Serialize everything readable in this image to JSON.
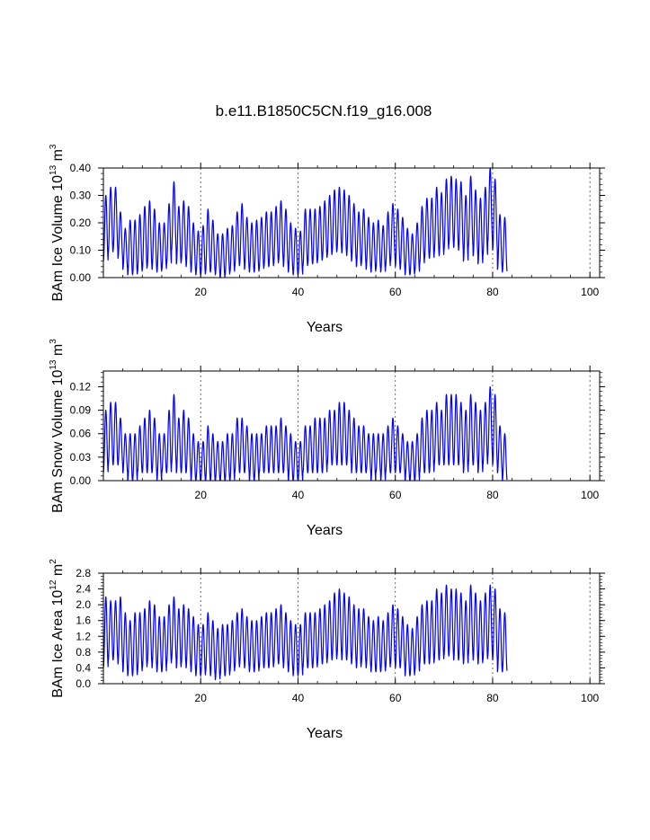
{
  "title": "b.e11.B1850C5CN.f19_g16.008",
  "colors": {
    "series": "#0000ff",
    "axes": "#000000",
    "gridline": "#000000"
  },
  "chart_data": [
    {
      "type": "line",
      "name": "ice-volume",
      "ylabel": {
        "main": "BAm Ice Volume 10",
        "sup": "13",
        "unit": " m",
        "unit_sup": "3"
      },
      "xlabel": "Years",
      "xlim": [
        0,
        102
      ],
      "ylim": [
        0,
        0.4
      ],
      "xticks": [
        20,
        40,
        60,
        80,
        100
      ],
      "xtick_labels": [
        "20",
        "40",
        "60",
        "80",
        "100"
      ],
      "yticks": [
        0,
        0.1,
        0.2,
        0.3,
        0.4
      ],
      "ytick_labels": [
        "0.00",
        "0.10",
        "0.20",
        "0.30",
        "0.40"
      ],
      "vlines": [
        20,
        40,
        60,
        80,
        100
      ],
      "series": [
        {
          "name": "ice volume (annual max, min)",
          "max": [
            0.3,
            0.33,
            0.33,
            0.24,
            0.18,
            0.21,
            0.21,
            0.23,
            0.26,
            0.28,
            0.25,
            0.2,
            0.2,
            0.27,
            0.35,
            0.26,
            0.28,
            0.26,
            0.2,
            0.17,
            0.19,
            0.25,
            0.21,
            0.16,
            0.16,
            0.18,
            0.19,
            0.24,
            0.27,
            0.22,
            0.2,
            0.21,
            0.22,
            0.24,
            0.24,
            0.26,
            0.28,
            0.25,
            0.2,
            0.18,
            0.17,
            0.25,
            0.25,
            0.25,
            0.26,
            0.28,
            0.3,
            0.32,
            0.33,
            0.32,
            0.3,
            0.27,
            0.24,
            0.25,
            0.22,
            0.2,
            0.21,
            0.19,
            0.24,
            0.27,
            0.25,
            0.22,
            0.18,
            0.16,
            0.2,
            0.26,
            0.29,
            0.29,
            0.33,
            0.31,
            0.36,
            0.37,
            0.36,
            0.35,
            0.3,
            0.37,
            0.32,
            0.29,
            0.33,
            0.4,
            0.36,
            0.23,
            0.22
          ],
          "min": [
            0.06,
            0.09,
            0.1,
            0.07,
            0.03,
            0.01,
            0.01,
            0.02,
            0.03,
            0.04,
            0.03,
            0.02,
            0.03,
            0.05,
            0.1,
            0.05,
            0.06,
            0.04,
            0.02,
            0.01,
            0.01,
            0.02,
            0.02,
            0.01,
            0.0,
            0.01,
            0.02,
            0.04,
            0.05,
            0.03,
            0.02,
            0.02,
            0.03,
            0.04,
            0.04,
            0.05,
            0.06,
            0.04,
            0.02,
            0.01,
            0.01,
            0.04,
            0.05,
            0.05,
            0.06,
            0.07,
            0.08,
            0.09,
            0.1,
            0.09,
            0.08,
            0.06,
            0.04,
            0.05,
            0.03,
            0.02,
            0.03,
            0.02,
            0.04,
            0.06,
            0.04,
            0.03,
            0.01,
            0.01,
            0.02,
            0.05,
            0.07,
            0.07,
            0.09,
            0.08,
            0.1,
            0.12,
            0.11,
            0.1,
            0.06,
            0.11,
            0.08,
            0.05,
            0.08,
            0.13,
            0.1,
            0.03,
            0.02
          ]
        }
      ]
    },
    {
      "type": "line",
      "name": "snow-volume",
      "ylabel": {
        "main": "BAm Snow Volume 10",
        "sup": "13",
        "unit": " m",
        "unit_sup": "3"
      },
      "xlabel": "Years",
      "xlim": [
        0,
        102
      ],
      "ylim": [
        0,
        0.14
      ],
      "xticks": [
        20,
        40,
        60,
        80,
        100
      ],
      "xtick_labels": [
        "20",
        "40",
        "60",
        "80",
        "100"
      ],
      "yticks": [
        0,
        0.03,
        0.06,
        0.09,
        0.12
      ],
      "ytick_labels": [
        "0.00",
        "0.03",
        "0.06",
        "0.09",
        "0.12"
      ],
      "vlines": [
        20,
        40,
        60,
        80,
        100
      ],
      "series": [
        {
          "name": "snow volume (annual max, min)",
          "max": [
            0.09,
            0.1,
            0.1,
            0.08,
            0.06,
            0.06,
            0.06,
            0.07,
            0.08,
            0.09,
            0.08,
            0.06,
            0.06,
            0.09,
            0.11,
            0.08,
            0.09,
            0.08,
            0.06,
            0.05,
            0.05,
            0.07,
            0.06,
            0.05,
            0.05,
            0.06,
            0.06,
            0.08,
            0.08,
            0.07,
            0.06,
            0.06,
            0.06,
            0.07,
            0.07,
            0.07,
            0.08,
            0.07,
            0.06,
            0.05,
            0.05,
            0.07,
            0.07,
            0.08,
            0.08,
            0.08,
            0.09,
            0.09,
            0.1,
            0.1,
            0.09,
            0.08,
            0.07,
            0.07,
            0.06,
            0.06,
            0.06,
            0.06,
            0.07,
            0.08,
            0.07,
            0.06,
            0.05,
            0.05,
            0.06,
            0.08,
            0.09,
            0.09,
            0.1,
            0.09,
            0.11,
            0.11,
            0.11,
            0.1,
            0.09,
            0.11,
            0.1,
            0.09,
            0.1,
            0.12,
            0.11,
            0.07,
            0.06
          ],
          "min": [
            0.01,
            0.02,
            0.02,
            0.02,
            0.01,
            0.0,
            0.0,
            0.01,
            0.01,
            0.01,
            0.01,
            0.0,
            0.01,
            0.01,
            0.02,
            0.01,
            0.01,
            0.01,
            0.0,
            0.0,
            0.0,
            0.0,
            0.0,
            0.0,
            0.0,
            0.0,
            0.0,
            0.01,
            0.01,
            0.01,
            0.0,
            0.0,
            0.01,
            0.01,
            0.01,
            0.01,
            0.01,
            0.01,
            0.0,
            0.0,
            0.0,
            0.01,
            0.01,
            0.01,
            0.01,
            0.01,
            0.02,
            0.02,
            0.02,
            0.02,
            0.02,
            0.01,
            0.01,
            0.01,
            0.01,
            0.0,
            0.01,
            0.0,
            0.01,
            0.01,
            0.01,
            0.01,
            0.0,
            0.0,
            0.0,
            0.01,
            0.01,
            0.01,
            0.02,
            0.02,
            0.02,
            0.02,
            0.02,
            0.02,
            0.01,
            0.02,
            0.02,
            0.01,
            0.02,
            0.03,
            0.02,
            0.01,
            0.0
          ]
        }
      ]
    },
    {
      "type": "line",
      "name": "ice-area",
      "ylabel": {
        "main": "BAm Ice Area 10",
        "sup": "12",
        "unit": " m",
        "unit_sup": "2"
      },
      "xlabel": "Years",
      "xlim": [
        0,
        102
      ],
      "ylim": [
        0,
        2.8
      ],
      "xticks": [
        20,
        40,
        60,
        80,
        100
      ],
      "xtick_labels": [
        "20",
        "40",
        "60",
        "80",
        "100"
      ],
      "yticks": [
        0,
        0.4,
        0.8,
        1.2,
        1.6,
        2.0,
        2.4,
        2.8
      ],
      "ytick_labels": [
        "0.0",
        "0.4",
        "0.8",
        "1.2",
        "1.6",
        "2.0",
        "2.4",
        "2.8"
      ],
      "vlines": [
        20,
        40,
        60,
        80,
        100
      ],
      "series": [
        {
          "name": "ice area (annual max, min)",
          "max": [
            2.2,
            2.1,
            2.1,
            2.2,
            1.8,
            1.6,
            1.8,
            1.8,
            1.9,
            2.1,
            2.0,
            1.7,
            1.7,
            2.0,
            2.2,
            1.9,
            2.0,
            1.9,
            1.7,
            1.5,
            1.5,
            1.8,
            1.6,
            1.4,
            1.5,
            1.5,
            1.6,
            1.8,
            1.9,
            1.7,
            1.6,
            1.6,
            1.7,
            1.8,
            1.8,
            1.9,
            2.0,
            1.8,
            1.6,
            1.5,
            1.5,
            1.8,
            1.8,
            1.8,
            1.9,
            2.0,
            2.1,
            2.3,
            2.4,
            2.3,
            2.2,
            2.0,
            1.9,
            1.9,
            1.7,
            1.6,
            1.7,
            1.6,
            1.8,
            2.0,
            1.9,
            1.7,
            1.5,
            1.4,
            1.7,
            2.0,
            2.1,
            2.1,
            2.4,
            2.3,
            2.5,
            2.4,
            2.4,
            2.3,
            2.1,
            2.5,
            2.3,
            2.1,
            2.3,
            2.5,
            2.4,
            1.9,
            1.8
          ],
          "min": [
            0.4,
            0.6,
            0.6,
            0.5,
            0.3,
            0.2,
            0.2,
            0.3,
            0.4,
            0.5,
            0.4,
            0.3,
            0.3,
            0.5,
            0.6,
            0.4,
            0.5,
            0.4,
            0.3,
            0.2,
            0.2,
            0.3,
            0.2,
            0.1,
            0.2,
            0.2,
            0.3,
            0.4,
            0.5,
            0.4,
            0.3,
            0.3,
            0.4,
            0.4,
            0.4,
            0.5,
            0.5,
            0.4,
            0.3,
            0.2,
            0.2,
            0.4,
            0.4,
            0.4,
            0.5,
            0.5,
            0.6,
            0.6,
            0.7,
            0.6,
            0.6,
            0.5,
            0.4,
            0.5,
            0.4,
            0.3,
            0.3,
            0.3,
            0.4,
            0.5,
            0.4,
            0.4,
            0.2,
            0.2,
            0.3,
            0.5,
            0.5,
            0.5,
            0.6,
            0.6,
            0.7,
            0.7,
            0.6,
            0.6,
            0.5,
            0.7,
            0.6,
            0.5,
            0.6,
            0.7,
            0.6,
            0.3,
            0.3
          ]
        }
      ]
    }
  ]
}
